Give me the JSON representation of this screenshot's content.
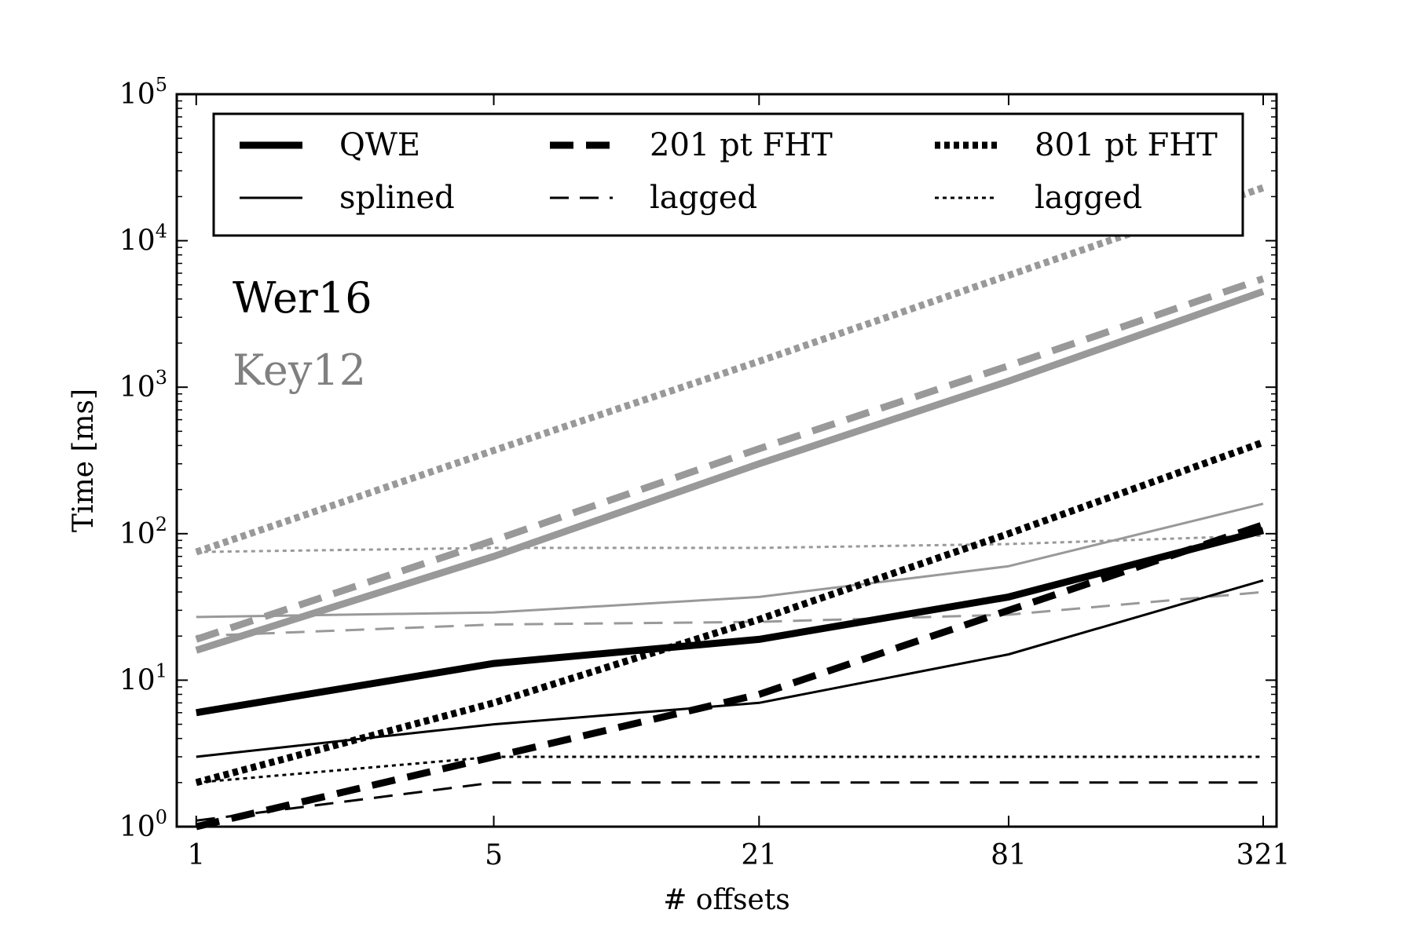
{
  "chart_data": {
    "type": "line",
    "xlabel": "# offsets",
    "ylabel": "Time [ms]",
    "x_scale": "log",
    "y_scale": "log",
    "x_ticks": [
      1,
      5,
      21,
      81,
      321
    ],
    "y_ticks": [
      1,
      10,
      100,
      1000,
      10000,
      100000
    ],
    "y_tick_labels": [
      {
        "base": "10",
        "exp": "0"
      },
      {
        "base": "10",
        "exp": "1"
      },
      {
        "base": "10",
        "exp": "2"
      },
      {
        "base": "10",
        "exp": "3"
      },
      {
        "base": "10",
        "exp": "4"
      },
      {
        "base": "10",
        "exp": "5"
      }
    ],
    "xlim": [
      0.9,
      345
    ],
    "ylim": [
      1,
      100000
    ],
    "grid": false,
    "legend_position": "top",
    "legend": [
      {
        "label": "QWE",
        "style": "solid",
        "width": "thick"
      },
      {
        "label": "splined",
        "style": "solid",
        "width": "thin"
      },
      {
        "label": "201 pt FHT",
        "style": "dashed",
        "width": "thick"
      },
      {
        "label": "lagged",
        "style": "dashed",
        "width": "thin"
      },
      {
        "label": "801 pt FHT",
        "style": "dotted",
        "width": "thick"
      },
      {
        "label": "lagged",
        "style": "dotted",
        "width": "thin"
      }
    ],
    "annotations": [
      {
        "text": "Wer16",
        "color": "#000000"
      },
      {
        "text": "Key12",
        "color": "#808080"
      }
    ],
    "colors": {
      "Wer16": "#000000",
      "Key12": "#999999"
    },
    "x": [
      1,
      5,
      21,
      81,
      321
    ],
    "series": [
      {
        "group": "Key12",
        "method": "QWE",
        "style": "solid",
        "width": "thick",
        "values": [
          16,
          70,
          300,
          1100,
          4500
        ]
      },
      {
        "group": "Key12",
        "method": "QWE splined",
        "style": "solid",
        "width": "thin",
        "values": [
          27,
          29,
          37,
          60,
          160
        ]
      },
      {
        "group": "Key12",
        "method": "201 pt FHT",
        "style": "dashed",
        "width": "thick",
        "values": [
          19,
          90,
          380,
          1400,
          5500
        ]
      },
      {
        "group": "Key12",
        "method": "201 pt FHT lagged",
        "style": "dashed",
        "width": "thin",
        "values": [
          20,
          24,
          25,
          28,
          40
        ]
      },
      {
        "group": "Key12",
        "method": "801 pt FHT",
        "style": "dotted",
        "width": "thick",
        "values": [
          75,
          370,
          1500,
          5800,
          23000
        ]
      },
      {
        "group": "Key12",
        "method": "801 pt FHT lagged",
        "style": "dotted",
        "width": "thin",
        "values": [
          75,
          80,
          80,
          85,
          97
        ]
      },
      {
        "group": "Wer16",
        "method": "QWE",
        "style": "solid",
        "width": "thick",
        "values": [
          6,
          13,
          19,
          37,
          105
        ]
      },
      {
        "group": "Wer16",
        "method": "QWE splined",
        "style": "solid",
        "width": "thin",
        "values": [
          3,
          5,
          7,
          15,
          48
        ]
      },
      {
        "group": "Wer16",
        "method": "201 pt FHT",
        "style": "dashed",
        "width": "thick",
        "values": [
          1,
          3,
          8,
          30,
          115
        ]
      },
      {
        "group": "Wer16",
        "method": "201 pt FHT lagged",
        "style": "dashed",
        "width": "thin",
        "values": [
          1.1,
          2,
          2,
          2,
          2
        ]
      },
      {
        "group": "Wer16",
        "method": "801 pt FHT",
        "style": "dotted",
        "width": "thick",
        "values": [
          2,
          7,
          26,
          100,
          420
        ]
      },
      {
        "group": "Wer16",
        "method": "801 pt FHT lagged",
        "style": "dotted",
        "width": "thin",
        "values": [
          2,
          3,
          3,
          3,
          3
        ]
      }
    ]
  }
}
